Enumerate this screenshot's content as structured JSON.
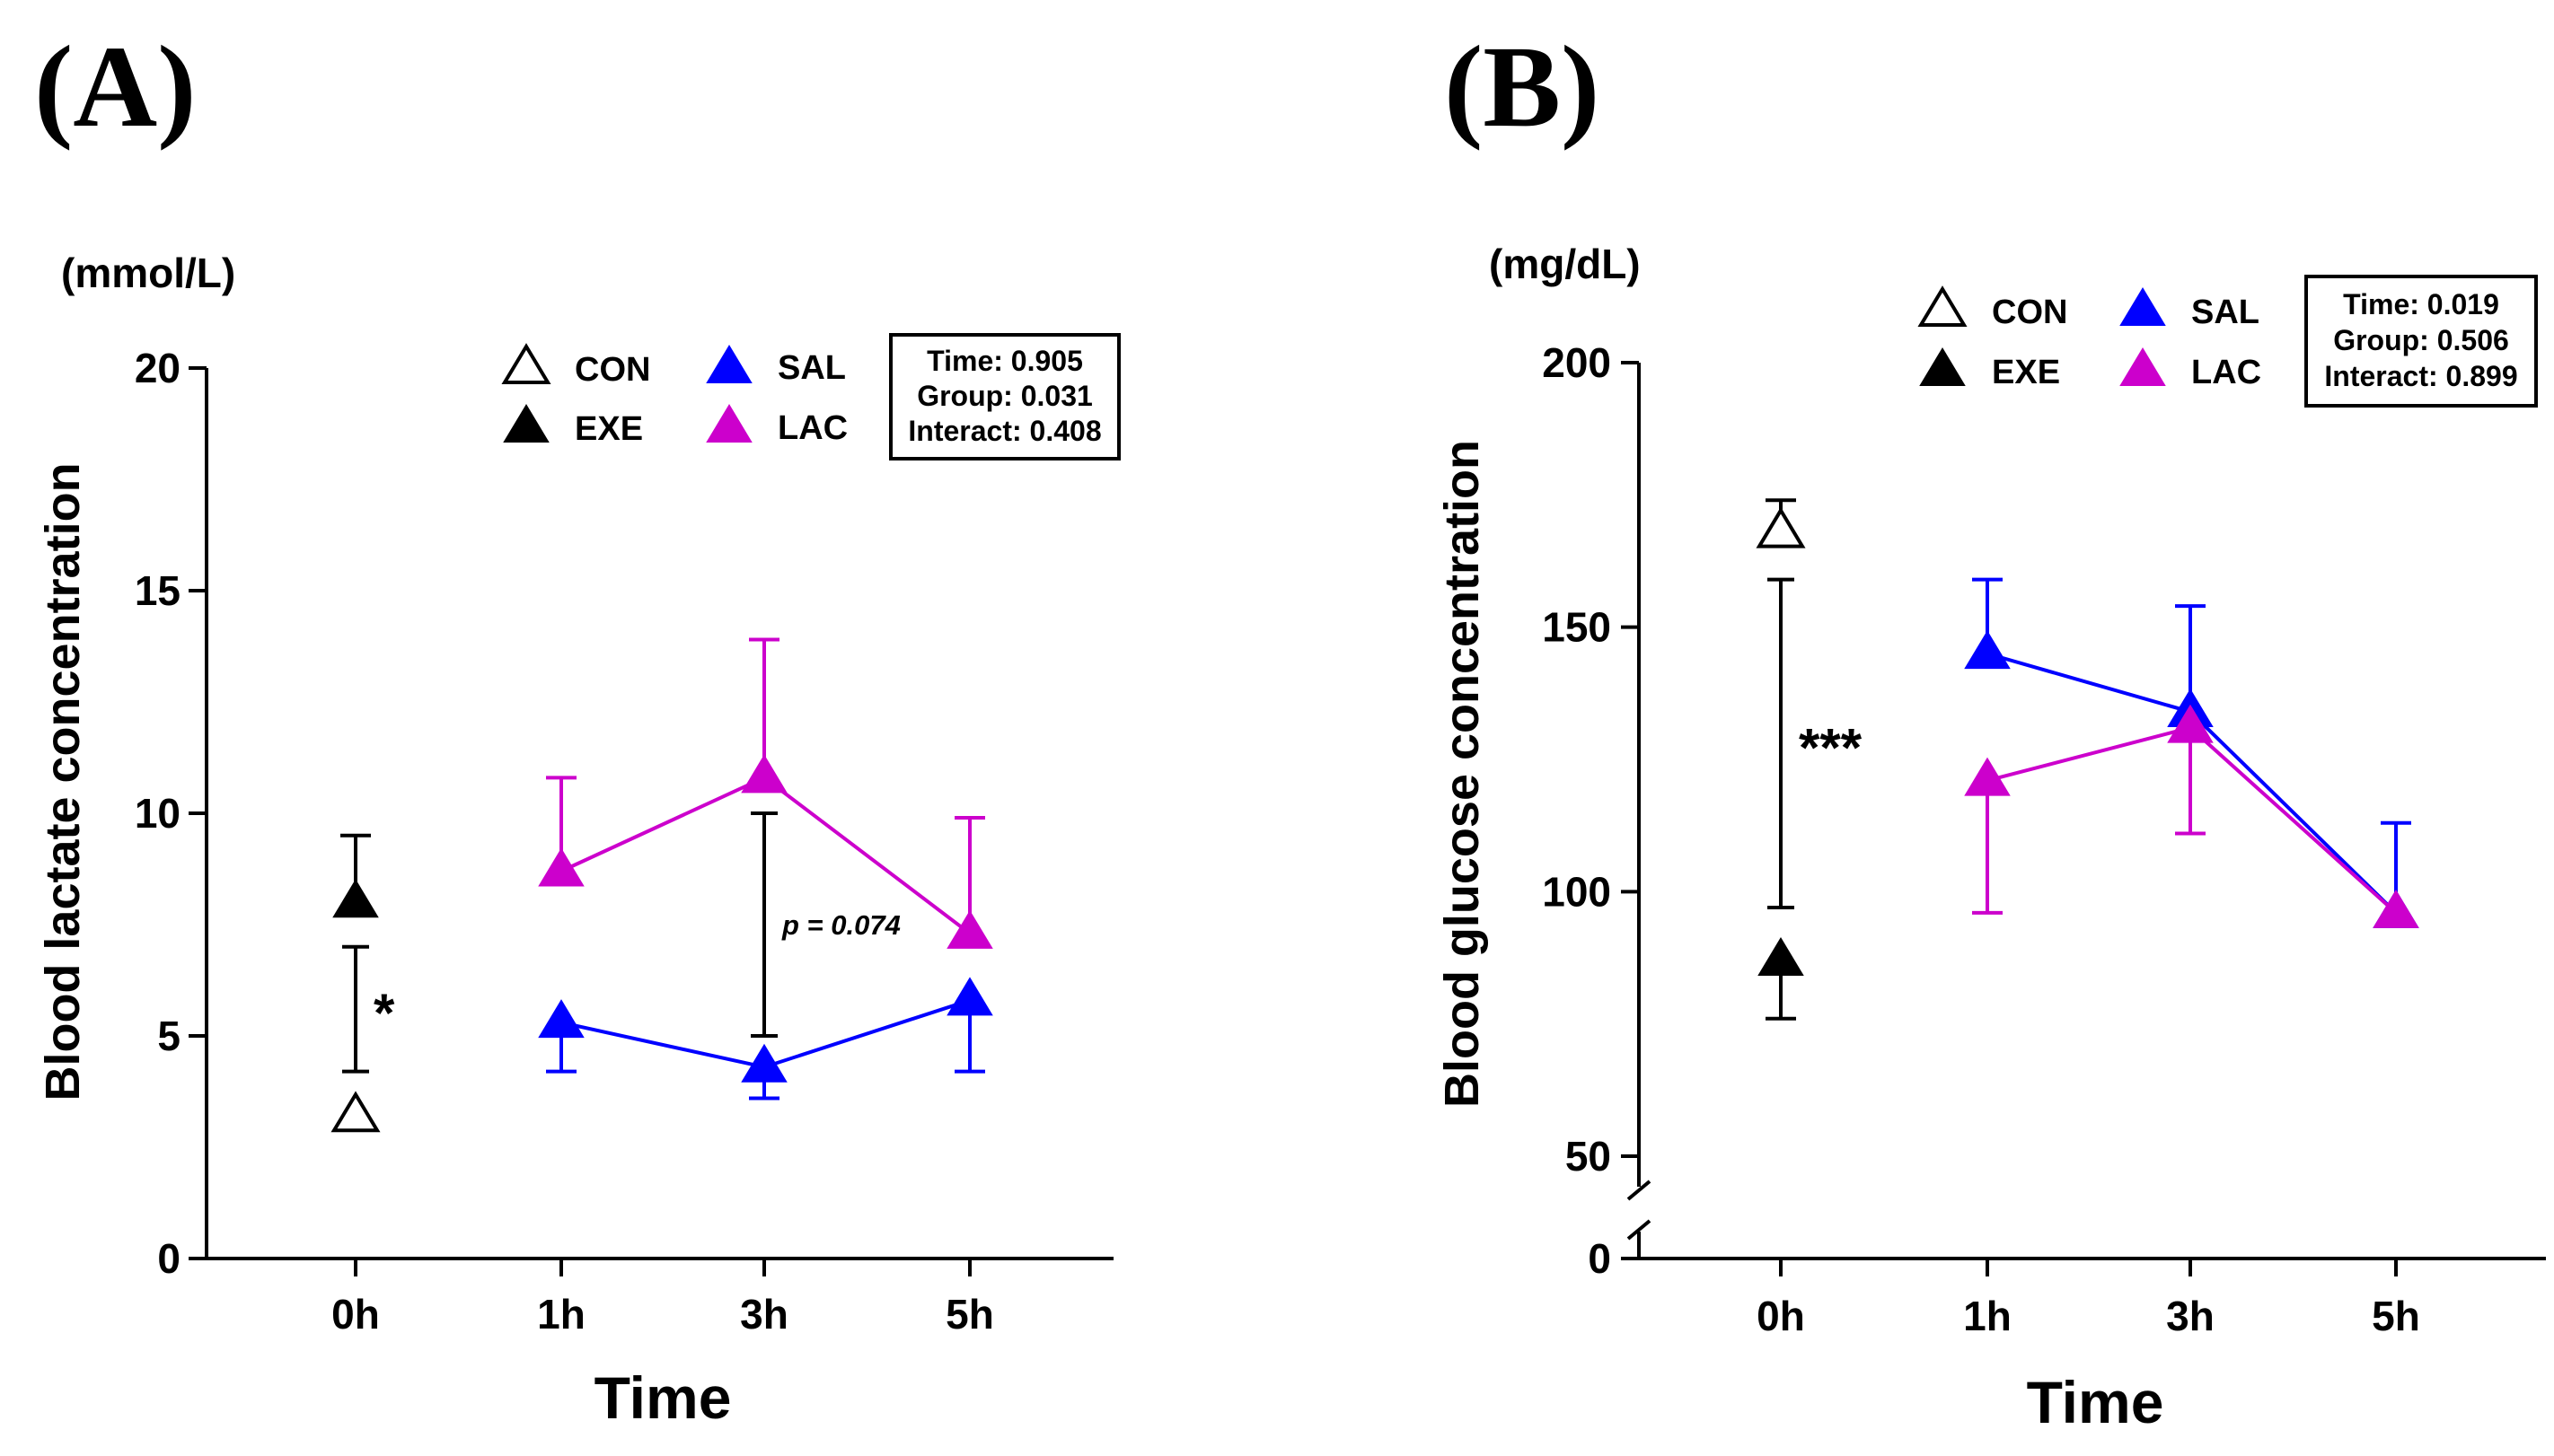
{
  "chart_data": [
    {
      "id": "A",
      "type": "line",
      "panel_label": "(A)",
      "unit": "(mmol/L)",
      "xlabel": "Time",
      "ylabel": "Blood lactate concentration",
      "categories": [
        "0h",
        "1h",
        "3h",
        "5h"
      ],
      "ylim": [
        0,
        20
      ],
      "yticks": [
        0,
        5,
        10,
        15,
        20
      ],
      "series": [
        {
          "name": "CON",
          "marker": "open-triangle",
          "color": "#000000",
          "values": [
            3.2,
            null,
            null,
            null
          ]
        },
        {
          "name": "EXE",
          "marker": "filled-triangle",
          "color": "#000000",
          "values": [
            8.0,
            null,
            null,
            null
          ],
          "error_up": [
            1.5,
            null,
            null,
            null
          ],
          "error_down": [
            0,
            null,
            null,
            null
          ]
        },
        {
          "name": "SAL",
          "marker": "filled-triangle",
          "color": "#0000ff",
          "values": [
            null,
            5.3,
            4.3,
            5.8
          ],
          "error_up": [
            0,
            0,
            0,
            0
          ],
          "error_down": [
            0,
            1.1,
            0.7,
            1.6
          ]
        },
        {
          "name": "LAC",
          "marker": "filled-triangle",
          "color": "#cc00cc",
          "values": [
            null,
            8.7,
            10.8,
            7.3
          ],
          "error_up": [
            0,
            2.1,
            3.1,
            2.6
          ],
          "error_down": [
            0,
            0,
            0,
            0
          ]
        }
      ],
      "legend": [
        {
          "label": "CON",
          "marker": "open-triangle",
          "color": "#000000"
        },
        {
          "label": "SAL",
          "marker": "filled-triangle",
          "color": "#0000ff"
        },
        {
          "label": "EXE",
          "marker": "filled-triangle",
          "color": "#000000"
        },
        {
          "label": "LAC",
          "marker": "filled-triangle",
          "color": "#cc00cc"
        }
      ],
      "stats": [
        "Time: 0.905",
        "Group: 0.031",
        "Interact: 0.408"
      ],
      "comparisons": [
        {
          "category": "0h",
          "low": 4.2,
          "high": 7.0,
          "label": "*"
        },
        {
          "category": "3h",
          "low": 5.0,
          "high": 10.0,
          "label": "p = 0.074"
        }
      ]
    },
    {
      "id": "B",
      "type": "line",
      "panel_label": "(B)",
      "unit": "(mg/dL)",
      "xlabel": "Time",
      "ylabel": "Blood glucose concentration",
      "categories": [
        "0h",
        "1h",
        "3h",
        "5h"
      ],
      "ylim": [
        0,
        200
      ],
      "axis_break": [
        0,
        50
      ],
      "yticks": [
        0,
        50,
        100,
        150,
        200
      ],
      "series": [
        {
          "name": "CON",
          "marker": "open-triangle",
          "color": "#000000",
          "values": [
            168,
            null,
            null,
            null
          ],
          "error_up": [
            6,
            null,
            null,
            null
          ],
          "error_down": [
            0,
            null,
            null,
            null
          ]
        },
        {
          "name": "EXE",
          "marker": "filled-triangle",
          "color": "#000000",
          "values": [
            87,
            null,
            null,
            null
          ],
          "error_up": [
            0,
            null,
            null,
            null
          ],
          "error_down": [
            11,
            null,
            null,
            null
          ]
        },
        {
          "name": "SAL",
          "marker": "filled-triangle",
          "color": "#0000ff",
          "values": [
            null,
            145,
            134,
            96
          ],
          "error_up": [
            0,
            14,
            20,
            17
          ],
          "error_down": [
            0,
            0,
            0,
            0
          ]
        },
        {
          "name": "LAC",
          "marker": "filled-triangle",
          "color": "#cc00cc",
          "values": [
            null,
            121,
            131,
            96
          ],
          "error_up": [
            0,
            0,
            0,
            0
          ],
          "error_down": [
            0,
            25,
            20,
            0
          ]
        }
      ],
      "legend": [
        {
          "label": "CON",
          "marker": "open-triangle",
          "color": "#000000"
        },
        {
          "label": "SAL",
          "marker": "filled-triangle",
          "color": "#0000ff"
        },
        {
          "label": "EXE",
          "marker": "filled-triangle",
          "color": "#000000"
        },
        {
          "label": "LAC",
          "marker": "filled-triangle",
          "color": "#cc00cc"
        }
      ],
      "stats": [
        "Time: 0.019",
        "Group: 0.506",
        "Interact: 0.899"
      ],
      "comparisons": [
        {
          "category": "0h",
          "low": 97,
          "high": 159,
          "label": "***"
        }
      ]
    }
  ]
}
